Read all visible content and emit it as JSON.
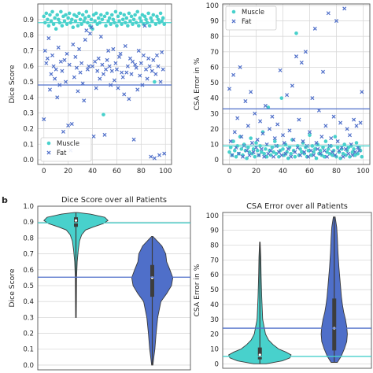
{
  "figure": {
    "panel_letter": "b",
    "colors": {
      "muscle": "#48d1cc",
      "fat": "#4f6fc9",
      "grid": "#d9d9d9",
      "frame": "#555555"
    }
  },
  "chart_data": [
    {
      "id": "scatter-dice",
      "type": "scatter",
      "title": "",
      "xlabel": "",
      "ylabel": "Dice Score",
      "xlim": [
        -5,
        105
      ],
      "ylim": [
        -0.03,
        1.0
      ],
      "xticks": [
        0,
        20,
        40,
        60,
        80,
        100
      ],
      "yticks": [
        0.0,
        0.1,
        0.2,
        0.3,
        0.4,
        0.5,
        0.6,
        0.7,
        0.8,
        0.9
      ],
      "grid": true,
      "legend": {
        "position": "bottom-left",
        "entries": [
          "Muscle",
          "Fat"
        ]
      },
      "hlines": [
        {
          "series": "Muscle",
          "y": 0.88
        },
        {
          "series": "Fat",
          "y": 0.48
        }
      ],
      "series": [
        {
          "name": "Muscle",
          "marker": "circle",
          "x": [
            0,
            1,
            2,
            3,
            4,
            5,
            6,
            7,
            8,
            9,
            10,
            11,
            12,
            13,
            14,
            15,
            16,
            17,
            18,
            19,
            20,
            21,
            22,
            23,
            24,
            25,
            26,
            27,
            28,
            29,
            30,
            31,
            32,
            33,
            34,
            35,
            36,
            37,
            38,
            39,
            40,
            41,
            42,
            43,
            44,
            45,
            46,
            47,
            48,
            49,
            50,
            51,
            52,
            53,
            54,
            55,
            56,
            57,
            58,
            59,
            60,
            61,
            62,
            63,
            64,
            65,
            66,
            67,
            68,
            69,
            70,
            71,
            72,
            73,
            74,
            75,
            76,
            77,
            78,
            79,
            80,
            81,
            82,
            83,
            84,
            85,
            86,
            87,
            88,
            89,
            90,
            91,
            92,
            93,
            94,
            95,
            96,
            97,
            98,
            99
          ],
          "y": [
            0.92,
            0.88,
            0.94,
            0.9,
            0.86,
            0.93,
            0.89,
            0.95,
            0.87,
            0.91,
            0.84,
            0.93,
            0.9,
            0.88,
            0.95,
            0.86,
            0.92,
            0.89,
            0.93,
            0.87,
            0.91,
            0.94,
            0.88,
            0.9,
            0.85,
            0.93,
            0.89,
            0.92,
            0.86,
            0.94,
            0.9,
            0.87,
            0.93,
            0.89,
            0.91,
            0.95,
            0.88,
            0.92,
            0.86,
            0.9,
            0.84,
            0.93,
            0.89,
            0.94,
            0.87,
            0.91,
            0.88,
            0.93,
            0.9,
            0.29,
            0.92,
            0.86,
            0.94,
            0.89,
            0.91,
            0.87,
            0.93,
            0.9,
            0.88,
            0.95,
            0.86,
            0.92,
            0.89,
            0.94,
            0.87,
            0.9,
            0.93,
            0.88,
            0.91,
            0.86,
            0.94,
            0.89,
            0.92,
            0.87,
            0.9,
            0.93,
            0.88,
            0.95,
            0.86,
            0.91,
            0.89,
            0.93,
            0.87,
            0.92,
            0.9,
            0.88,
            0.94,
            0.86,
            0.91,
            0.89,
            0.93,
            0.5,
            0.87,
            0.92,
            0.9,
            0.88,
            0.94,
            0.89,
            0.91,
            0.87
          ]
        },
        {
          "name": "Fat",
          "marker": "x",
          "x": [
            0,
            1,
            2,
            3,
            4,
            5,
            6,
            7,
            8,
            9,
            10,
            11,
            12,
            13,
            14,
            15,
            16,
            17,
            18,
            19,
            20,
            21,
            22,
            23,
            24,
            25,
            26,
            27,
            28,
            29,
            30,
            31,
            32,
            33,
            34,
            35,
            36,
            37,
            38,
            39,
            40,
            41,
            42,
            43,
            44,
            45,
            46,
            47,
            48,
            49,
            50,
            51,
            52,
            53,
            54,
            55,
            56,
            57,
            58,
            59,
            60,
            61,
            62,
            63,
            64,
            65,
            66,
            67,
            68,
            69,
            70,
            71,
            72,
            73,
            74,
            75,
            76,
            77,
            78,
            79,
            80,
            81,
            82,
            83,
            84,
            85,
            86,
            87,
            88,
            89,
            90,
            91,
            92,
            93,
            94,
            95,
            96,
            97,
            98,
            99
          ],
          "y": [
            0.26,
            0.7,
            0.62,
            0.65,
            0.78,
            0.45,
            0.55,
            0.67,
            0.6,
            0.52,
            0.58,
            0.4,
            0.72,
            0.48,
            0.63,
            0.57,
            0.18,
            0.64,
            0.5,
            0.68,
            0.22,
            0.61,
            0.06,
            0.23,
            0.74,
            0.53,
            0.66,
            0.59,
            0.44,
            0.71,
            0.56,
            0.62,
            0.49,
            0.38,
            0.77,
            0.83,
            0.58,
            0.6,
            0.81,
            0.85,
            0.6,
            0.15,
            0.63,
            0.46,
            0.57,
            0.65,
            0.52,
            0.79,
            0.61,
            0.55,
            0.16,
            0.58,
            0.64,
            0.7,
            0.6,
            0.48,
            0.57,
            0.71,
            0.51,
            0.62,
            0.58,
            0.46,
            0.66,
            0.68,
            0.56,
            0.53,
            0.42,
            0.73,
            0.56,
            0.6,
            0.39,
            0.65,
            0.55,
            0.63,
            0.13,
            0.61,
            0.59,
            0.45,
            0.7,
            0.54,
            0.62,
            0.48,
            0.67,
            0.86,
            0.58,
            0.52,
            0.65,
            0.6,
            0.02,
            0.57,
            0.64,
            0.01,
            0.55,
            0.67,
            0.6,
            0.03,
            0.5,
            0.69,
            0.58,
            0.04
          ]
        }
      ]
    },
    {
      "id": "scatter-csa",
      "type": "scatter",
      "title": "",
      "xlabel": "",
      "ylabel": "CSA Error in %",
      "xlim": [
        -5,
        105
      ],
      "ylim": [
        -3,
        101
      ],
      "xticks": [
        0,
        20,
        40,
        60,
        80,
        100
      ],
      "yticks": [
        0,
        10,
        20,
        30,
        40,
        50,
        60,
        70,
        80,
        90,
        100
      ],
      "grid": true,
      "legend": {
        "position": "top-left",
        "entries": [
          "Muscle",
          "Fat"
        ]
      },
      "hlines": [
        {
          "series": "Fat",
          "y": 33
        },
        {
          "series": "Muscle",
          "y": 9
        }
      ],
      "series": [
        {
          "name": "Muscle",
          "marker": "circle",
          "x": [
            0,
            1,
            2,
            3,
            4,
            5,
            6,
            7,
            8,
            9,
            10,
            11,
            12,
            13,
            14,
            15,
            16,
            17,
            18,
            19,
            20,
            21,
            22,
            23,
            24,
            25,
            26,
            27,
            28,
            29,
            30,
            31,
            32,
            33,
            34,
            35,
            36,
            37,
            38,
            39,
            40,
            41,
            42,
            43,
            44,
            45,
            46,
            47,
            48,
            49,
            50,
            51,
            52,
            53,
            54,
            55,
            56,
            57,
            58,
            59,
            60,
            61,
            62,
            63,
            64,
            65,
            66,
            67,
            68,
            69,
            70,
            71,
            72,
            73,
            74,
            75,
            76,
            77,
            78,
            79,
            80,
            81,
            82,
            83,
            84,
            85,
            86,
            87,
            88,
            89,
            90,
            91,
            92,
            93,
            94,
            95,
            96,
            97,
            98,
            99
          ],
          "y": [
            5,
            8,
            3,
            12,
            6,
            2,
            9,
            4,
            15,
            7,
            3,
            10,
            6,
            1,
            8,
            5,
            14,
            4,
            7,
            2,
            11,
            6,
            3,
            9,
            5,
            18,
            4,
            7,
            2,
            34,
            6,
            3,
            8,
            5,
            12,
            4,
            9,
            2,
            6,
            40,
            7,
            3,
            10,
            5,
            1,
            8,
            4,
            13,
            6,
            2,
            82,
            9,
            3,
            7,
            5,
            11,
            4,
            8,
            2,
            6,
            16,
            3,
            9,
            5,
            7,
            1,
            10,
            4,
            6,
            3,
            8,
            2,
            12,
            5,
            7,
            4,
            9,
            3,
            6,
            15,
            2,
            8,
            5,
            1,
            7,
            4,
            10,
            3,
            6,
            8,
            2,
            9,
            5,
            7,
            3,
            11,
            4,
            8,
            6,
            2
          ]
        },
        {
          "name": "Fat",
          "marker": "x",
          "x": [
            0,
            1,
            2,
            3,
            4,
            5,
            6,
            7,
            8,
            9,
            10,
            11,
            12,
            13,
            14,
            15,
            16,
            17,
            18,
            19,
            20,
            21,
            22,
            23,
            24,
            25,
            26,
            27,
            28,
            29,
            30,
            31,
            32,
            33,
            34,
            35,
            36,
            37,
            38,
            39,
            40,
            41,
            42,
            43,
            44,
            45,
            46,
            47,
            48,
            49,
            50,
            51,
            52,
            53,
            54,
            55,
            56,
            57,
            58,
            59,
            60,
            61,
            62,
            63,
            64,
            65,
            66,
            67,
            68,
            69,
            70,
            71,
            72,
            73,
            74,
            75,
            76,
            77,
            78,
            79,
            80,
            81,
            82,
            83,
            84,
            85,
            86,
            87,
            88,
            89,
            90,
            91,
            92,
            93,
            94,
            95,
            96,
            97,
            98,
            99
          ],
          "y": [
            46,
            12,
            3,
            55,
            18,
            8,
            27,
            4,
            60,
            15,
            2,
            9,
            38,
            6,
            22,
            3,
            44,
            11,
            5,
            30,
            8,
            13,
            3,
            25,
            7,
            17,
            2,
            35,
            10,
            4,
            20,
            6,
            28,
            2,
            14,
            9,
            23,
            5,
            58,
            3,
            16,
            11,
            4,
            42,
            7,
            19,
            2,
            48,
            13,
            5,
            67,
            8,
            26,
            3,
            63,
            12,
            5,
            70,
            9,
            2,
            18,
            6,
            40,
            3,
            85,
            11,
            7,
            32,
            4,
            15,
            57,
            6,
            22,
            2,
            95,
            9,
            14,
            5,
            28,
            3,
            90,
            12,
            6,
            24,
            8,
            2,
            98,
            7,
            20,
            4,
            16,
            10,
            3,
            26,
            5,
            22,
            8,
            6,
            24,
            44
          ]
        }
      ]
    },
    {
      "id": "violin-dice",
      "type": "violin",
      "title": "Dice Score over all Patients",
      "xlabel": "",
      "ylabel": "Dice Score",
      "ylim": [
        -0.03,
        1.0
      ],
      "yticks": [
        0.0,
        0.1,
        0.2,
        0.3,
        0.4,
        0.5,
        0.6,
        0.7,
        0.8,
        0.9,
        1.0
      ],
      "grid": true,
      "hlines": [
        {
          "series": "Muscle",
          "y": 0.895
        },
        {
          "series": "Fat",
          "y": 0.553
        }
      ],
      "violins": [
        {
          "name": "Muscle",
          "min": 0.3,
          "max": 0.96,
          "q1": 0.87,
          "median": 0.91,
          "q3": 0.93,
          "density_y": [
            0.3,
            0.4,
            0.55,
            0.65,
            0.72,
            0.78,
            0.82,
            0.85,
            0.87,
            0.89,
            0.91,
            0.93,
            0.95,
            0.96
          ],
          "density_w": [
            0.01,
            0.015,
            0.02,
            0.04,
            0.07,
            0.11,
            0.18,
            0.3,
            0.55,
            0.85,
            1.0,
            0.9,
            0.45,
            0.05
          ]
        },
        {
          "name": "Fat",
          "min": 0.0,
          "max": 0.81,
          "q1": 0.43,
          "median": 0.55,
          "q3": 0.63,
          "density_y": [
            0.0,
            0.05,
            0.1,
            0.2,
            0.3,
            0.4,
            0.45,
            0.5,
            0.55,
            0.6,
            0.65,
            0.7,
            0.75,
            0.81
          ],
          "density_w": [
            0.02,
            0.05,
            0.08,
            0.12,
            0.17,
            0.27,
            0.45,
            0.6,
            0.64,
            0.55,
            0.45,
            0.42,
            0.3,
            0.02
          ]
        }
      ]
    },
    {
      "id": "violin-csa",
      "type": "violin",
      "title": "CSA Error over all Patients",
      "xlabel": "",
      "ylabel": "CSA Error in %",
      "ylim": [
        -3,
        102
      ],
      "yticks": [
        0,
        10,
        20,
        30,
        40,
        50,
        60,
        70,
        80,
        90,
        100
      ],
      "grid": true,
      "hlines": [
        {
          "series": "Fat",
          "y": 24
        },
        {
          "series": "Muscle",
          "y": 5
        }
      ],
      "violins": [
        {
          "name": "Muscle",
          "min": 0,
          "max": 82,
          "q1": 3,
          "median": 6,
          "q3": 11,
          "density_y": [
            0,
            2,
            4,
            6,
            8,
            10,
            13,
            16,
            20,
            30,
            45,
            60,
            72,
            82
          ],
          "density_w": [
            0.2,
            0.72,
            0.96,
            1.0,
            0.83,
            0.6,
            0.42,
            0.28,
            0.18,
            0.09,
            0.06,
            0.04,
            0.03,
            0.01
          ]
        },
        {
          "name": "Fat",
          "min": 1,
          "max": 99,
          "q1": 9,
          "median": 24,
          "q3": 44,
          "density_y": [
            1,
            5,
            10,
            15,
            20,
            25,
            30,
            35,
            40,
            45,
            55,
            65,
            75,
            85,
            92,
            99
          ],
          "density_w": [
            0.1,
            0.22,
            0.32,
            0.4,
            0.42,
            0.4,
            0.36,
            0.3,
            0.26,
            0.23,
            0.19,
            0.15,
            0.12,
            0.1,
            0.08,
            0.03
          ]
        }
      ]
    }
  ]
}
